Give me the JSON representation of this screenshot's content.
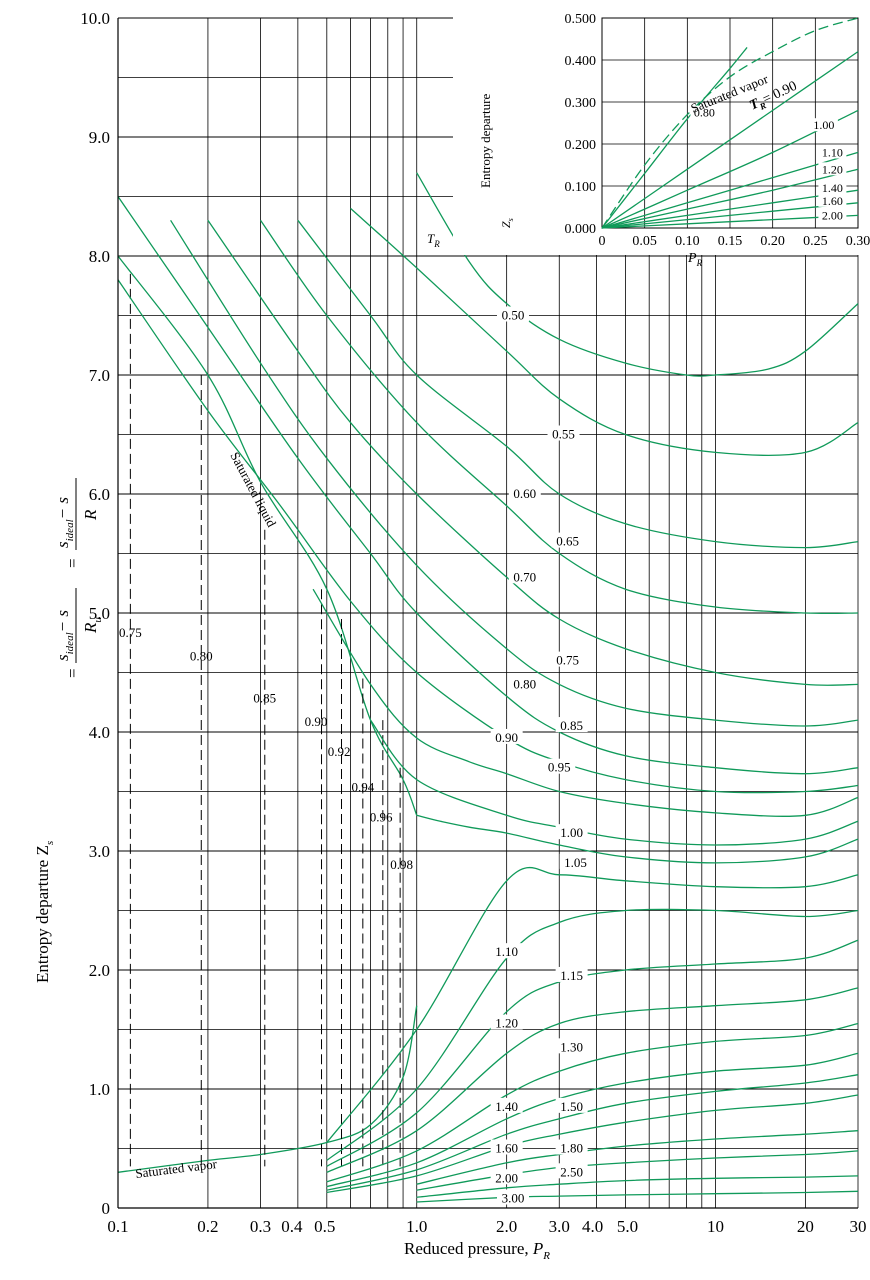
{
  "chart_data": [
    {
      "type": "line",
      "title": "",
      "xlabel": "Reduced pressure, P_R",
      "ylabel": "Entropy departure Z_s = (s̄_ideal − s̄)/R_u = (s_ideal − s)/R",
      "x_scale": "log",
      "xlim": [
        0.1,
        30
      ],
      "ylim": [
        0,
        10
      ],
      "grid": true,
      "x_ticks": [
        "0.1",
        "0.2",
        "0.3",
        "0.4",
        "0.5",
        "1.0",
        "2.0",
        "3.0",
        "4.0",
        "5.0",
        "10",
        "20",
        "30"
      ],
      "y_ticks": [
        "0",
        "1.0",
        "2.0",
        "3.0",
        "4.0",
        "5.0",
        "6.0",
        "7.0",
        "8.0",
        "9.0",
        "10.0"
      ],
      "annotations": [
        "Saturated liquid",
        "Saturated vapor",
        "T_R"
      ],
      "series": [
        {
          "name": "0.50",
          "x": [
            1.0,
            1.5,
            2.0,
            3.0,
            5.0,
            8.0,
            10.0,
            15.0,
            20.0,
            30.0
          ],
          "y": [
            8.7,
            7.95,
            7.6,
            7.3,
            7.1,
            7.0,
            7.0,
            7.05,
            7.2,
            7.6
          ]
        },
        {
          "name": "0.55",
          "x": [
            0.6,
            1.0,
            2.0,
            3.0,
            5.0,
            10.0,
            20.0,
            30.0
          ],
          "y": [
            8.4,
            7.9,
            7.2,
            6.8,
            6.5,
            6.35,
            6.35,
            6.6
          ]
        },
        {
          "name": "0.60",
          "x": [
            0.4,
            0.7,
            1.0,
            2.0,
            3.0,
            5.0,
            10.0,
            20.0,
            30.0
          ],
          "y": [
            8.3,
            7.5,
            7.0,
            6.4,
            6.0,
            5.75,
            5.6,
            5.55,
            5.6
          ]
        },
        {
          "name": "0.65",
          "x": [
            0.3,
            0.5,
            1.0,
            2.0,
            3.0,
            5.0,
            10.0,
            20.0,
            30.0
          ],
          "y": [
            8.3,
            7.5,
            6.6,
            5.9,
            5.5,
            5.2,
            5.05,
            5.0,
            5.0
          ]
        },
        {
          "name": "0.70",
          "x": [
            0.2,
            0.4,
            0.6,
            1.0,
            2.0,
            3.0,
            5.0,
            10.0,
            20.0,
            30.0
          ],
          "y": [
            8.3,
            7.2,
            6.6,
            6.0,
            5.3,
            4.95,
            4.7,
            4.5,
            4.4,
            4.4
          ]
        },
        {
          "name": "0.75",
          "x": [
            0.15,
            0.3,
            0.5,
            1.0,
            2.0,
            3.0,
            5.0,
            10.0,
            20.0,
            30.0
          ],
          "y": [
            8.3,
            7.1,
            6.3,
            5.4,
            4.7,
            4.4,
            4.2,
            4.1,
            4.05,
            4.1
          ]
        },
        {
          "name": "0.80",
          "x": [
            0.1,
            0.2,
            0.4,
            0.7,
            1.0,
            2.0,
            3.0,
            5.0,
            10.0,
            20.0,
            30.0
          ],
          "y": [
            8.5,
            7.4,
            6.3,
            5.5,
            5.0,
            4.3,
            4.0,
            3.8,
            3.7,
            3.65,
            3.7
          ]
        },
        {
          "name": "0.85",
          "x": [
            0.1,
            0.2,
            0.35,
            0.6,
            1.0,
            2.0,
            3.0,
            5.0,
            10.0,
            20.0,
            30.0
          ],
          "y": [
            7.8,
            6.7,
            5.9,
            5.1,
            4.5,
            3.95,
            3.75,
            3.6,
            3.5,
            3.5,
            3.55
          ]
        },
        {
          "name": "0.90",
          "x": [
            0.45,
            0.7,
            1.0,
            1.5,
            2.0,
            3.0,
            5.0,
            10.0,
            20.0,
            30.0
          ],
          "y": [
            5.2,
            4.4,
            3.95,
            3.75,
            3.65,
            3.5,
            3.4,
            3.32,
            3.3,
            3.45
          ]
        },
        {
          "name": "0.95",
          "x": [
            0.7,
            1.0,
            2.0,
            3.0,
            5.0,
            10.0,
            20.0,
            30.0
          ],
          "y": [
            4.1,
            3.6,
            3.3,
            3.2,
            3.1,
            3.05,
            3.1,
            3.25
          ]
        },
        {
          "name": "1.00",
          "x": [
            1.0,
            1.2,
            1.5,
            2.0,
            3.0,
            5.0,
            10.0,
            20.0,
            30.0
          ],
          "y": [
            3.3,
            3.25,
            3.2,
            3.15,
            3.05,
            2.95,
            2.9,
            2.95,
            3.1
          ]
        },
        {
          "name": "1.05",
          "x": [
            0.5,
            1.0,
            2.0,
            3.0,
            5.0,
            10.0,
            20.0,
            30.0
          ],
          "y": [
            0.55,
            1.5,
            2.75,
            2.8,
            2.75,
            2.7,
            2.7,
            2.8
          ]
        },
        {
          "name": "1.10",
          "x": [
            0.5,
            1.0,
            2.0,
            3.0,
            5.0,
            10.0,
            20.0,
            30.0
          ],
          "y": [
            0.4,
            1.0,
            2.1,
            2.4,
            2.5,
            2.5,
            2.45,
            2.5
          ]
        },
        {
          "name": "1.15",
          "x": [
            0.5,
            1.0,
            2.0,
            3.0,
            5.0,
            10.0,
            20.0,
            30.0
          ],
          "y": [
            0.35,
            0.8,
            1.65,
            1.9,
            2.0,
            2.05,
            2.1,
            2.25
          ]
        },
        {
          "name": "1.20",
          "x": [
            0.5,
            1.0,
            2.0,
            3.0,
            5.0,
            10.0,
            20.0,
            30.0
          ],
          "y": [
            0.3,
            0.65,
            1.3,
            1.55,
            1.65,
            1.7,
            1.75,
            1.85
          ]
        },
        {
          "name": "1.30",
          "x": [
            0.5,
            1.0,
            2.0,
            3.0,
            5.0,
            10.0,
            20.0,
            30.0
          ],
          "y": [
            0.22,
            0.48,
            0.95,
            1.15,
            1.3,
            1.4,
            1.45,
            1.55
          ]
        },
        {
          "name": "1.40",
          "x": [
            0.5,
            1.0,
            2.0,
            3.0,
            5.0,
            10.0,
            20.0,
            30.0
          ],
          "y": [
            0.18,
            0.38,
            0.75,
            0.92,
            1.05,
            1.15,
            1.2,
            1.3
          ]
        },
        {
          "name": "1.50",
          "x": [
            0.5,
            1.0,
            2.0,
            3.0,
            5.0,
            10.0,
            20.0,
            30.0
          ],
          "y": [
            0.15,
            0.32,
            0.62,
            0.75,
            0.88,
            0.98,
            1.05,
            1.12
          ]
        },
        {
          "name": "1.60",
          "x": [
            0.5,
            1.0,
            2.0,
            3.0,
            5.0,
            10.0,
            20.0,
            30.0
          ],
          "y": [
            0.13,
            0.27,
            0.52,
            0.62,
            0.72,
            0.82,
            0.88,
            0.95
          ]
        },
        {
          "name": "1.80",
          "x": [
            1.0,
            2.0,
            3.0,
            5.0,
            10.0,
            20.0,
            30.0
          ],
          "y": [
            0.2,
            0.38,
            0.45,
            0.52,
            0.58,
            0.62,
            0.65
          ]
        },
        {
          "name": "2.00",
          "x": [
            1.0,
            2.0,
            3.0,
            5.0,
            10.0,
            20.0,
            30.0
          ],
          "y": [
            0.15,
            0.28,
            0.34,
            0.38,
            0.42,
            0.45,
            0.48
          ]
        },
        {
          "name": "2.50",
          "x": [
            1.0,
            2.0,
            3.0,
            5.0,
            10.0,
            20.0,
            30.0
          ],
          "y": [
            0.09,
            0.17,
            0.2,
            0.23,
            0.25,
            0.26,
            0.27
          ]
        },
        {
          "name": "3.00",
          "x": [
            1.0,
            2.0,
            3.0,
            5.0,
            10.0,
            20.0,
            30.0
          ],
          "y": [
            0.05,
            0.09,
            0.1,
            0.11,
            0.12,
            0.13,
            0.14
          ]
        }
      ],
      "saturation_lines": [
        {
          "name": "Saturated liquid",
          "x": [
            0.1,
            0.2,
            0.3,
            0.5,
            0.7,
            0.9,
            1.0
          ],
          "y": [
            8.0,
            7.0,
            6.1,
            5.2,
            4.1,
            3.6,
            3.3
          ]
        },
        {
          "name": "Saturated vapor",
          "x": [
            0.1,
            0.2,
            0.3,
            0.5,
            0.7,
            0.9,
            1.0
          ],
          "y": [
            0.3,
            0.4,
            0.45,
            0.55,
            0.7,
            1.1,
            1.7
          ]
        }
      ],
      "vertical_dashed_labels": [
        "0.75",
        "0.80",
        "0.85",
        "0.90",
        "0.92",
        "0.94",
        "0.96",
        "0.98"
      ]
    },
    {
      "type": "line",
      "title": "",
      "xlabel": "P_R",
      "ylabel": "Entropy departure Z_s = (s̄_ideal − s̄)/R_u = (s_ideal − s)/R",
      "xlim": [
        0,
        0.3
      ],
      "ylim": [
        0,
        0.5
      ],
      "x_ticks": [
        "0",
        "0.05",
        "0.10",
        "0.15",
        "0.20",
        "0.25",
        "0.30"
      ],
      "y_ticks": [
        "0.000",
        "0.100",
        "0.200",
        "0.300",
        "0.400",
        "0.500"
      ],
      "series": [
        {
          "name": "0.80",
          "x": [
            0,
            0.05,
            0.1,
            0.15,
            0.17
          ],
          "y": [
            0,
            0.13,
            0.26,
            0.38,
            0.43
          ]
        },
        {
          "name": "0.90",
          "x": [
            0,
            0.1,
            0.2,
            0.3
          ],
          "y": [
            0,
            0.14,
            0.28,
            0.42
          ]
        },
        {
          "name": "1.00",
          "x": [
            0,
            0.1,
            0.2,
            0.3
          ],
          "y": [
            0,
            0.09,
            0.18,
            0.28
          ]
        },
        {
          "name": "1.10",
          "x": [
            0,
            0.1,
            0.2,
            0.3
          ],
          "y": [
            0,
            0.06,
            0.12,
            0.18
          ]
        },
        {
          "name": "1.20",
          "x": [
            0,
            0.1,
            0.2,
            0.3
          ],
          "y": [
            0,
            0.045,
            0.09,
            0.14
          ]
        },
        {
          "name": "1.40",
          "x": [
            0,
            0.1,
            0.2,
            0.3
          ],
          "y": [
            0,
            0.03,
            0.06,
            0.09
          ]
        },
        {
          "name": "1.60",
          "x": [
            0,
            0.1,
            0.2,
            0.3
          ],
          "y": [
            0,
            0.02,
            0.04,
            0.06
          ]
        },
        {
          "name": "2.00",
          "x": [
            0,
            0.1,
            0.2,
            0.3
          ],
          "y": [
            0,
            0.01,
            0.02,
            0.03
          ]
        }
      ],
      "saturated_vapor": {
        "name": "Saturated vapor",
        "x": [
          0,
          0.05,
          0.1,
          0.15,
          0.2,
          0.25,
          0.3
        ],
        "y": [
          0,
          0.15,
          0.27,
          0.36,
          0.42,
          0.47,
          0.5
        ]
      },
      "labels": [
        "Saturated vapor",
        "T_R = 0.90"
      ]
    }
  ],
  "text": {
    "xlabel_main": "Reduced pressure,",
    "xlabel_sym": "P",
    "xlabel_sub": "R",
    "inset_xlabel_sym": "P",
    "inset_xlabel_sub": "R",
    "tr_sym": "T",
    "tr_sub": "R",
    "tr_eq": "T",
    "tr_eq_sub": "R",
    "tr_eq_val": "= 0.90",
    "sat_liquid": "Saturated liquid",
    "sat_vapor": "Saturated vapor",
    "inset_sat_vapor": "Saturated vapor",
    "ylabel_left": "Entropy departure Z",
    "ylabel_left_sub": "s",
    "ylabel_eq1": "=",
    "ylabel_eq2": "=",
    "ylabel_num_bar": "s",
    "ylabel_num_sub": "ideal",
    "ylabel_num_minus": "− s",
    "ylabel_den_bar": "R",
    "ylabel_den_sub": "u",
    "ylabel_num2": "s",
    "ylabel_num2_sub": "ideal",
    "ylabel_num2_minus": "− s",
    "ylabel_den2": "R",
    "inset_ylabel_top": "Entropy departure",
    "inset_ylabel_z": "Z",
    "inset_ylabel_zs": "s"
  }
}
